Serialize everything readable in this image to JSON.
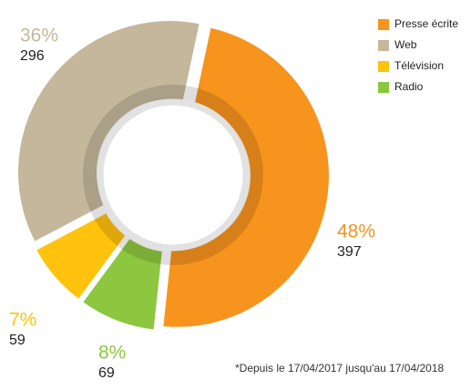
{
  "chart_data": {
    "type": "donut",
    "categories": [
      "Presse écrite",
      "Radio",
      "Télévision",
      "Web"
    ],
    "values": [
      397,
      69,
      59,
      296
    ],
    "percent_labels": [
      "48%",
      "8%",
      "7%",
      "36%"
    ],
    "colors": [
      "#f7941d",
      "#8dc63f",
      "#ffc20e",
      "#c4b79c"
    ],
    "legend_order": [
      0,
      3,
      2,
      1
    ],
    "footnote": "*Depuis le 17/04/2017 jusqu'au 17/04/2018"
  }
}
